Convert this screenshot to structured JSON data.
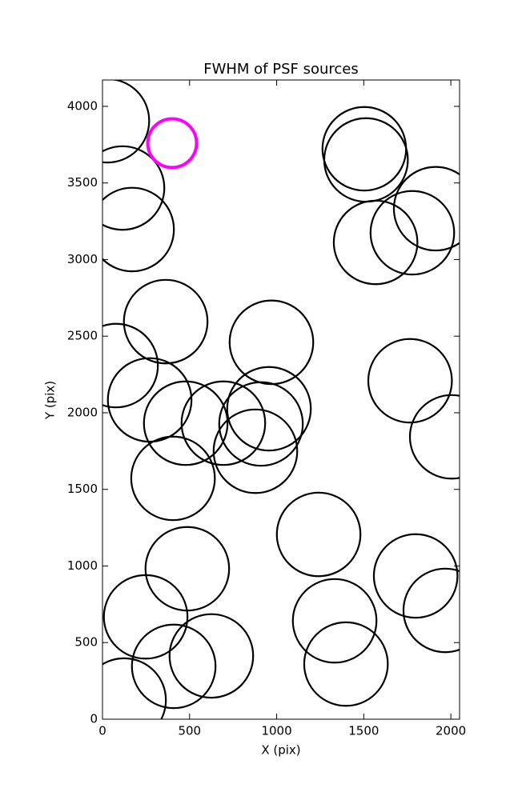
{
  "chart_data": {
    "type": "scatter",
    "title": "FWHM of PSF sources",
    "x_label": "X (pix)",
    "y_label": "Y (pix)",
    "xlim": [
      0,
      2050
    ],
    "ylim": [
      0,
      4172
    ],
    "xticks": [
      0,
      500,
      1000,
      1500,
      2000
    ],
    "yticks": [
      0,
      500,
      1000,
      1500,
      2000,
      2500,
      3000,
      3500,
      4000
    ],
    "series": [
      {
        "color": "#000000",
        "x": [
          28,
          115,
          170,
          363,
          78,
          271,
          478,
          694,
          405,
          970,
          956,
          910,
          878,
          1241,
          487,
          248,
          625,
          409,
          124,
          1503,
          1513,
          1913,
          1779,
          1568,
          1766,
          2005,
          1798,
          1968,
          1333,
          1398
        ],
        "values": [
          3906,
          3467,
          3196,
          2595,
          2308,
          2084,
          1932,
          1932,
          1572,
          2460,
          2026,
          1927,
          1749,
          1206,
          982,
          668,
          413,
          345,
          125,
          3723,
          3650,
          3332,
          3175,
          3112,
          2209,
          1843,
          935,
          710,
          642,
          360
        ],
        "sizes": [
          240,
          240,
          240,
          240,
          240,
          240,
          240,
          240,
          240,
          240,
          240,
          240,
          240,
          240,
          240,
          240,
          240,
          240,
          240,
          240,
          240,
          240,
          240,
          240,
          240,
          240,
          240,
          240,
          240,
          240
        ]
      },
      {
        "color": "#ff00ff",
        "x": [
          400
        ],
        "values": [
          3760
        ],
        "sizes": [
          140
        ]
      }
    ]
  }
}
